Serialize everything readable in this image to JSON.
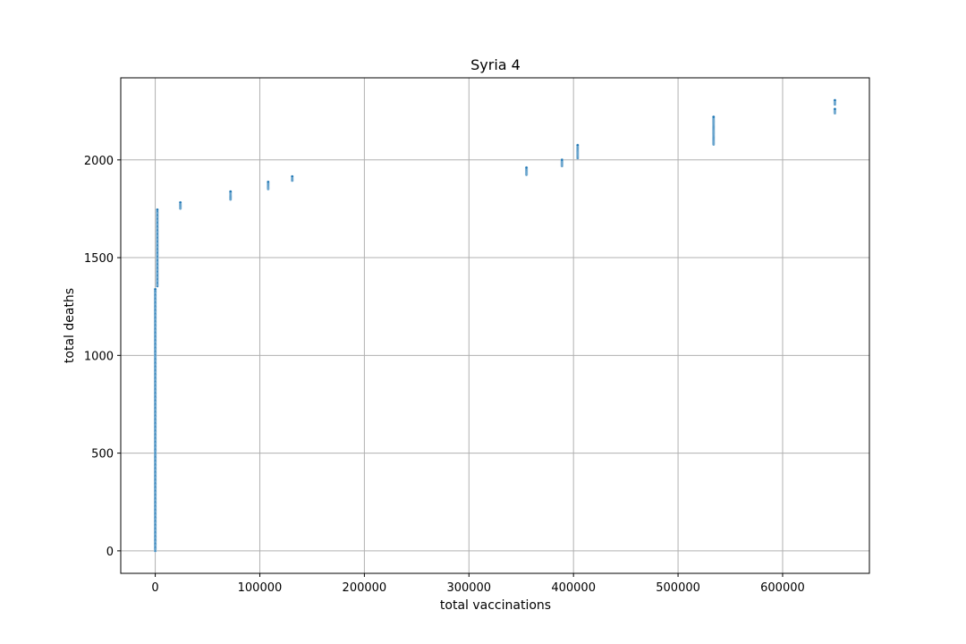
{
  "chart_data": {
    "type": "scatter",
    "title": "Syria 4",
    "xlabel": "total vaccinations",
    "ylabel": "total deaths",
    "xlim": [
      -33000,
      683000
    ],
    "ylim": [
      -115,
      2420
    ],
    "grid": true,
    "xticks": [
      0,
      100000,
      200000,
      300000,
      400000,
      500000,
      600000
    ],
    "yticks": [
      0,
      500,
      1000,
      1500,
      2000
    ],
    "marker_color": "#1f77b4",
    "series": [
      {
        "points": [
          {
            "x": 0,
            "y_from": 0,
            "y_to": 1340,
            "step": 6
          },
          {
            "x": 2000,
            "y_from": 1355,
            "y_to": 1745,
            "step": 6
          },
          {
            "x": 24000,
            "y_from": 1752,
            "y_to": 1782,
            "step": 5
          },
          {
            "x": 72000,
            "y_from": 1798,
            "y_to": 1840,
            "step": 5
          },
          {
            "x": 108000,
            "y_from": 1852,
            "y_to": 1890,
            "step": 5
          },
          {
            "x": 131000,
            "y_from": 1895,
            "y_to": 1915,
            "step": 5
          },
          {
            "x": 355000,
            "y_from": 1925,
            "y_to": 1960,
            "step": 5
          },
          {
            "x": 389000,
            "y_from": 1970,
            "y_to": 2000,
            "step": 5
          },
          {
            "x": 404000,
            "y_from": 2010,
            "y_to": 2075,
            "step": 5
          },
          {
            "x": 534000,
            "y_from": 2080,
            "y_to": 2220,
            "step": 5
          },
          {
            "x": 650000,
            "y_from": 2240,
            "y_to": 2260,
            "step": 5
          },
          {
            "x": 650000,
            "y_from": 2285,
            "y_to": 2305,
            "step": 5
          }
        ]
      }
    ]
  }
}
